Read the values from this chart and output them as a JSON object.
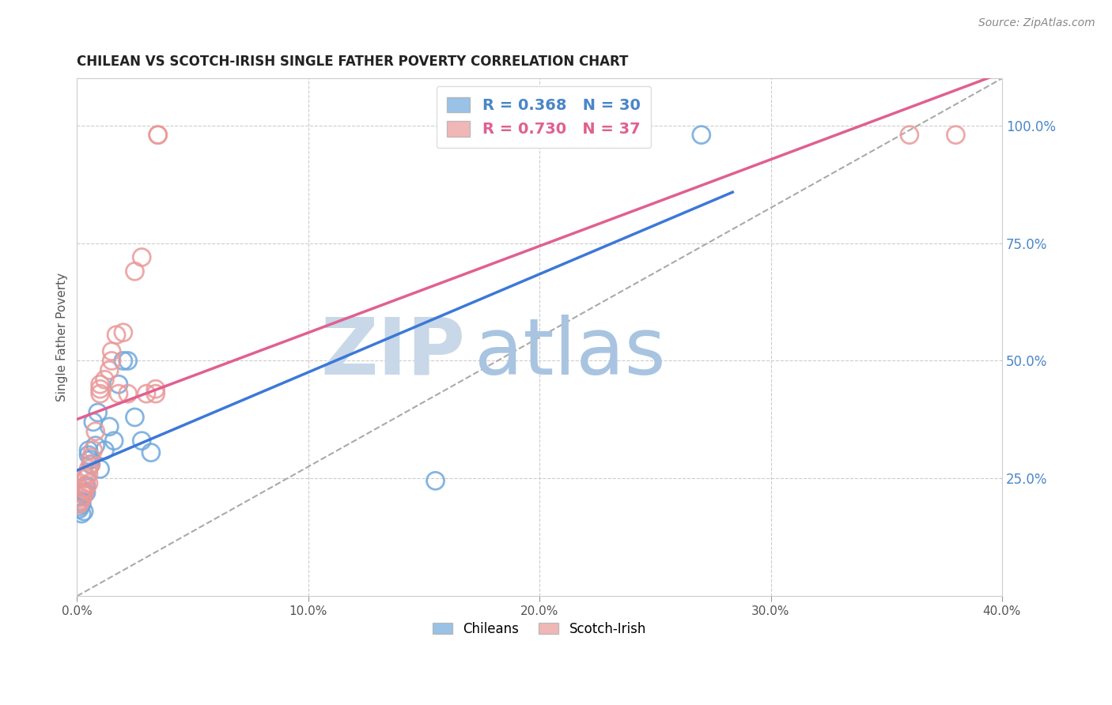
{
  "title": "CHILEAN VS SCOTCH-IRISH SINGLE FATHER POVERTY CORRELATION CHART",
  "source": "Source: ZipAtlas.com",
  "xlabel_ticks": [
    "0.0%",
    "10.0%",
    "20.0%",
    "30.0%",
    "40.0%"
  ],
  "ylabel_right_ticks": [
    "25.0%",
    "50.0%",
    "75.0%",
    "100.0%"
  ],
  "ylabel_left": "Single Father Poverty",
  "legend_label1": "Chileans",
  "legend_label2": "Scotch-Irish",
  "R1": 0.368,
  "N1": 30,
  "R2": 0.73,
  "N2": 37,
  "blue_color": "#6fa8dc",
  "pink_color": "#ea9999",
  "blue_line_color": "#3c78d8",
  "pink_line_color": "#e06090",
  "xlim": [
    0.0,
    0.4
  ],
  "ylim": [
    0.0,
    1.1
  ],
  "chilean_x": [
    0.001,
    0.001,
    0.002,
    0.002,
    0.002,
    0.003,
    0.003,
    0.003,
    0.004,
    0.004,
    0.004,
    0.005,
    0.005,
    0.006,
    0.006,
    0.007,
    0.008,
    0.009,
    0.01,
    0.012,
    0.014,
    0.016,
    0.018,
    0.02,
    0.022,
    0.025,
    0.028,
    0.032,
    0.155,
    0.27
  ],
  "chilean_y": [
    0.185,
    0.19,
    0.195,
    0.2,
    0.175,
    0.22,
    0.215,
    0.18,
    0.22,
    0.23,
    0.235,
    0.3,
    0.31,
    0.28,
    0.29,
    0.37,
    0.32,
    0.39,
    0.27,
    0.31,
    0.36,
    0.33,
    0.45,
    0.5,
    0.5,
    0.38,
    0.33,
    0.305,
    0.245,
    0.98
  ],
  "scotch_x": [
    0.001,
    0.001,
    0.002,
    0.002,
    0.002,
    0.003,
    0.003,
    0.004,
    0.004,
    0.004,
    0.005,
    0.005,
    0.005,
    0.006,
    0.006,
    0.007,
    0.008,
    0.01,
    0.01,
    0.01,
    0.012,
    0.014,
    0.015,
    0.015,
    0.017,
    0.018,
    0.02,
    0.022,
    0.025,
    0.028,
    0.03,
    0.034,
    0.034,
    0.035,
    0.035,
    0.36,
    0.38
  ],
  "scotch_y": [
    0.195,
    0.2,
    0.205,
    0.21,
    0.22,
    0.215,
    0.225,
    0.23,
    0.25,
    0.255,
    0.24,
    0.26,
    0.27,
    0.28,
    0.295,
    0.31,
    0.35,
    0.43,
    0.44,
    0.45,
    0.46,
    0.48,
    0.5,
    0.52,
    0.555,
    0.43,
    0.56,
    0.43,
    0.69,
    0.72,
    0.43,
    0.43,
    0.44,
    0.98,
    0.98,
    0.98,
    0.98
  ],
  "watermark_zip": "ZIP",
  "watermark_atlas": "atlas",
  "watermark_color_zip": "#c8d8e8",
  "watermark_color_atlas": "#a8c4e0",
  "background_color": "#ffffff",
  "grid_color": "#cccccc"
}
